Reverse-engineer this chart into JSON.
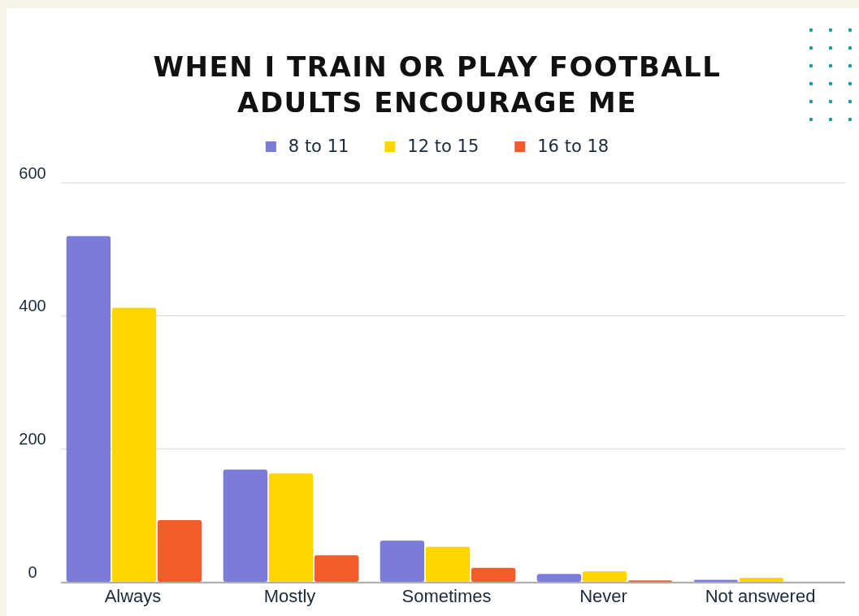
{
  "chart_data": {
    "type": "bar",
    "title": "WHEN I TRAIN OR PLAY FOOTBALL\nADULTS ENCOURAGE ME",
    "categories": [
      "Always",
      "Mostly",
      "Sometimes",
      "Never",
      "Not answered"
    ],
    "series": [
      {
        "name": "8 to 11",
        "color": "#7b7bd8",
        "values": [
          520,
          169,
          62,
          12,
          3
        ]
      },
      {
        "name": "12 to 15",
        "color": "#ffd500",
        "values": [
          412,
          163,
          53,
          16,
          6
        ]
      },
      {
        "name": "16 to 18",
        "color": "#f25c2b",
        "values": [
          93,
          40,
          21,
          2,
          0
        ]
      }
    ],
    "ylim": [
      0,
      600
    ],
    "yticks": [
      0,
      200,
      400,
      600
    ],
    "grid": "y",
    "legend": "top"
  }
}
